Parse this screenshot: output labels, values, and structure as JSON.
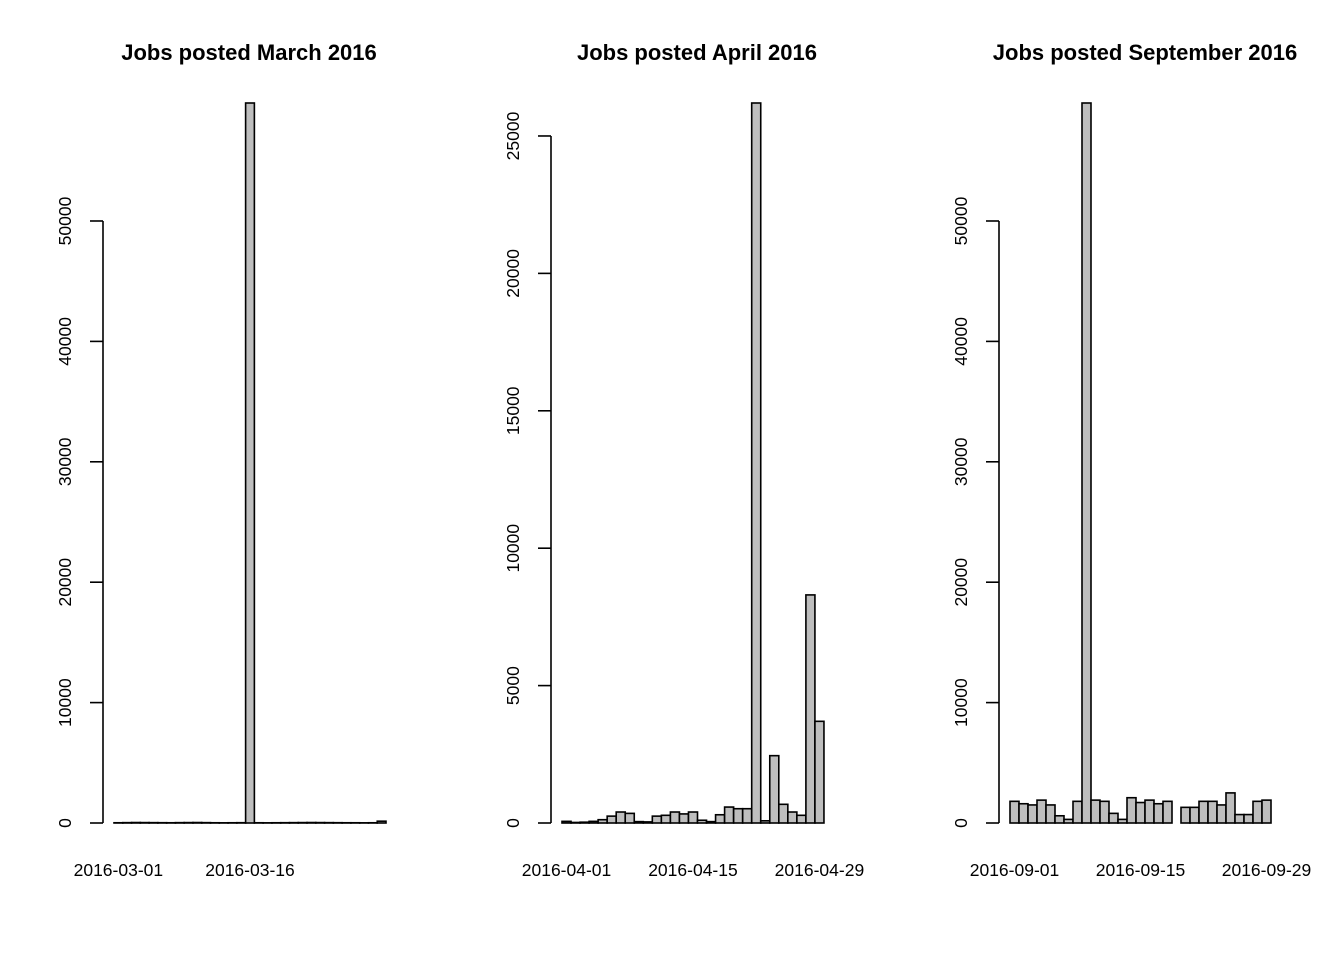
{
  "chart_data": [
    {
      "type": "bar",
      "title": "Jobs posted March 2016",
      "xlabel": "",
      "ylabel": "",
      "ylim": [
        0,
        59800
      ],
      "yticks": [
        0,
        10000,
        20000,
        30000,
        40000,
        50000
      ],
      "x_tick_labels": [
        "2016-03-01",
        "2016-03-16"
      ],
      "categories": [
        "2016-03-01",
        "2016-03-02",
        "2016-03-03",
        "2016-03-04",
        "2016-03-05",
        "2016-03-06",
        "2016-03-07",
        "2016-03-08",
        "2016-03-09",
        "2016-03-10",
        "2016-03-11",
        "2016-03-12",
        "2016-03-13",
        "2016-03-14",
        "2016-03-15",
        "2016-03-16",
        "2016-03-17",
        "2016-03-18",
        "2016-03-19",
        "2016-03-20",
        "2016-03-21",
        "2016-03-22",
        "2016-03-23",
        "2016-03-24",
        "2016-03-25",
        "2016-03-26",
        "2016-03-27",
        "2016-03-28",
        "2016-03-29",
        "2016-03-30",
        "2016-03-31"
      ],
      "values": [
        20,
        30,
        40,
        35,
        30,
        25,
        20,
        30,
        35,
        40,
        30,
        20,
        15,
        20,
        25,
        59800,
        20,
        15,
        20,
        25,
        30,
        35,
        40,
        35,
        30,
        25,
        20,
        20,
        15,
        20,
        150
      ]
    },
    {
      "type": "bar",
      "title": "Jobs posted April 2016",
      "xlabel": "",
      "ylabel": "",
      "ylim": [
        0,
        26200
      ],
      "yticks": [
        0,
        5000,
        10000,
        15000,
        20000,
        25000
      ],
      "x_tick_labels": [
        "2016-04-01",
        "2016-04-15",
        "2016-04-29"
      ],
      "categories": [
        "2016-04-01",
        "2016-04-02",
        "2016-04-03",
        "2016-04-04",
        "2016-04-05",
        "2016-04-06",
        "2016-04-07",
        "2016-04-08",
        "2016-04-09",
        "2016-04-10",
        "2016-04-11",
        "2016-04-12",
        "2016-04-13",
        "2016-04-14",
        "2016-04-15",
        "2016-04-16",
        "2016-04-17",
        "2016-04-18",
        "2016-04-19",
        "2016-04-20",
        "2016-04-21",
        "2016-04-22",
        "2016-04-23",
        "2016-04-24",
        "2016-04-25",
        "2016-04-26",
        "2016-04-27",
        "2016-04-28",
        "2016-04-29",
        "2016-04-30"
      ],
      "values": [
        60,
        20,
        30,
        60,
        120,
        250,
        400,
        350,
        50,
        40,
        250,
        280,
        400,
        330,
        400,
        100,
        50,
        300,
        580,
        520,
        520,
        26200,
        80,
        2450,
        680,
        400,
        280,
        8300,
        3700,
        0
      ]
    },
    {
      "type": "bar",
      "title": "Jobs posted September 2016",
      "xlabel": "",
      "ylabel": "",
      "ylim": [
        0,
        59800
      ],
      "yticks": [
        0,
        10000,
        20000,
        30000,
        40000,
        50000
      ],
      "x_tick_labels": [
        "2016-09-01",
        "2016-09-15",
        "2016-09-29"
      ],
      "categories": [
        "2016-09-01",
        "2016-09-02",
        "2016-09-03",
        "2016-09-04",
        "2016-09-05",
        "2016-09-06",
        "2016-09-07",
        "2016-09-08",
        "2016-09-09",
        "2016-09-10",
        "2016-09-11",
        "2016-09-12",
        "2016-09-13",
        "2016-09-14",
        "2016-09-15",
        "2016-09-16",
        "2016-09-17",
        "2016-09-18",
        "2016-09-19",
        "2016-09-20",
        "2016-09-21",
        "2016-09-22",
        "2016-09-23",
        "2016-09-24",
        "2016-09-25",
        "2016-09-26",
        "2016-09-27",
        "2016-09-28",
        "2016-09-29",
        "2016-09-30"
      ],
      "values": [
        1800,
        1600,
        1500,
        1900,
        1500,
        600,
        300,
        1800,
        59800,
        1900,
        1800,
        800,
        300,
        2100,
        1700,
        1900,
        1600,
        1800,
        0,
        1300,
        1300,
        1800,
        1800,
        1500,
        2500,
        700,
        700,
        1800,
        1900,
        0
      ]
    }
  ]
}
